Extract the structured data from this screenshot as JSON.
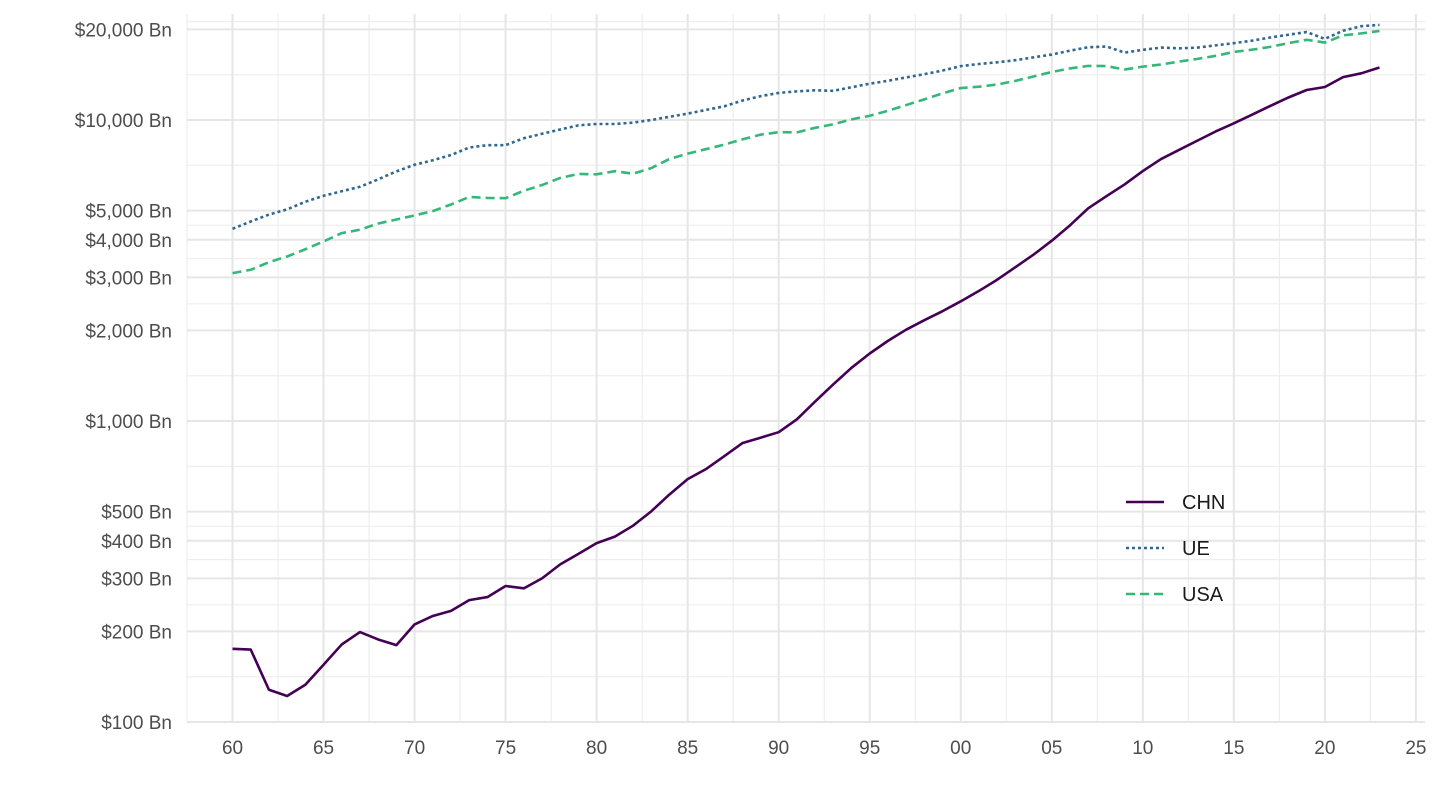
{
  "chart_data": {
    "type": "line",
    "x_axis": {
      "range": [
        1957.5,
        2025.5
      ],
      "ticks": [
        1960,
        1965,
        1970,
        1975,
        1980,
        1985,
        1990,
        1995,
        2000,
        2005,
        2010,
        2015,
        2020,
        2025
      ],
      "tick_labels": [
        "60",
        "65",
        "70",
        "75",
        "80",
        "85",
        "90",
        "95",
        "00",
        "05",
        "10",
        "15",
        "20",
        "25"
      ]
    },
    "y_axis": {
      "scale": "log",
      "range": [
        100,
        22500
      ],
      "ticks": [
        100,
        200,
        300,
        400,
        500,
        1000,
        2000,
        3000,
        4000,
        5000,
        10000,
        20000
      ],
      "tick_labels": [
        "$100 Bn",
        "$200 Bn",
        "$300 Bn",
        "$400 Bn",
        "$500 Bn",
        "$1,000 Bn",
        "$2,000 Bn",
        "$3,000 Bn",
        "$4,000 Bn",
        "$5,000 Bn",
        "$10,000 Bn",
        "$20,000 Bn"
      ]
    },
    "grid": true,
    "legend": {
      "position": "bottom-right, inside plot",
      "entries": [
        {
          "label": "CHN",
          "color": "#440154",
          "dash": "solid"
        },
        {
          "label": "UE",
          "color": "#31688e",
          "dash": "dotted"
        },
        {
          "label": "USA",
          "color": "#35b779",
          "dash": "dashed"
        }
      ]
    },
    "x": [
      1960,
      1961,
      1962,
      1963,
      1964,
      1965,
      1966,
      1967,
      1968,
      1969,
      1970,
      1971,
      1972,
      1973,
      1974,
      1975,
      1976,
      1977,
      1978,
      1979,
      1980,
      1981,
      1982,
      1983,
      1984,
      1985,
      1986,
      1987,
      1988,
      1989,
      1990,
      1991,
      1992,
      1993,
      1994,
      1995,
      1996,
      1997,
      1998,
      1999,
      2000,
      2001,
      2002,
      2003,
      2004,
      2005,
      2006,
      2007,
      2008,
      2009,
      2010,
      2011,
      2012,
      2013,
      2014,
      2015,
      2016,
      2017,
      2018,
      2019,
      2020,
      2021,
      2022,
      2023
    ],
    "series": [
      {
        "name": "CHN",
        "values": [
          175,
          174,
          128,
          122,
          133,
          155,
          181,
          199,
          188,
          180,
          211,
          225,
          234,
          254,
          260,
          283,
          278,
          300,
          334,
          362,
          393,
          413,
          449,
          501,
          570,
          641,
          692,
          763,
          844,
          880,
          918,
          1013,
          1160,
          1324,
          1502,
          1676,
          1846,
          2011,
          2162,
          2317,
          2498,
          2705,
          2947,
          3243,
          3571,
          3972,
          4467,
          5089,
          5582,
          6110,
          6766,
          7416,
          7960,
          8542,
          9159,
          9749,
          10416,
          11139,
          11880,
          12579,
          12875,
          13882,
          14292,
          14938
        ]
      },
      {
        "name": "UE",
        "values": [
          4350,
          4600,
          4850,
          5050,
          5350,
          5600,
          5800,
          6000,
          6350,
          6750,
          7100,
          7350,
          7650,
          8100,
          8250,
          8250,
          8700,
          9000,
          9300,
          9600,
          9700,
          9700,
          9800,
          10000,
          10250,
          10500,
          10800,
          11100,
          11600,
          12000,
          12300,
          12450,
          12550,
          12500,
          12850,
          13200,
          13500,
          13850,
          14200,
          14600,
          15100,
          15350,
          15550,
          15800,
          16150,
          16500,
          17000,
          17450,
          17550,
          16750,
          17100,
          17400,
          17300,
          17400,
          17700,
          18000,
          18350,
          18800,
          19200,
          19600,
          18600,
          19800,
          20500,
          20700
        ]
      },
      {
        "name": "USA",
        "values": [
          3100,
          3180,
          3370,
          3520,
          3720,
          3950,
          4210,
          4320,
          4530,
          4670,
          4820,
          4980,
          5240,
          5550,
          5510,
          5500,
          5820,
          6080,
          6420,
          6620,
          6600,
          6760,
          6630,
          6920,
          7420,
          7730,
          8000,
          8280,
          8620,
          8940,
          9110,
          9100,
          9420,
          9680,
          10050,
          10330,
          10730,
          11210,
          11710,
          12260,
          12770,
          12900,
          13120,
          13490,
          13950,
          14440,
          14840,
          15130,
          15110,
          14720,
          15040,
          15290,
          15640,
          15960,
          16340,
          16830,
          17120,
          17500,
          18010,
          18470,
          18080,
          19110,
          19400,
          19770
        ]
      }
    ]
  }
}
